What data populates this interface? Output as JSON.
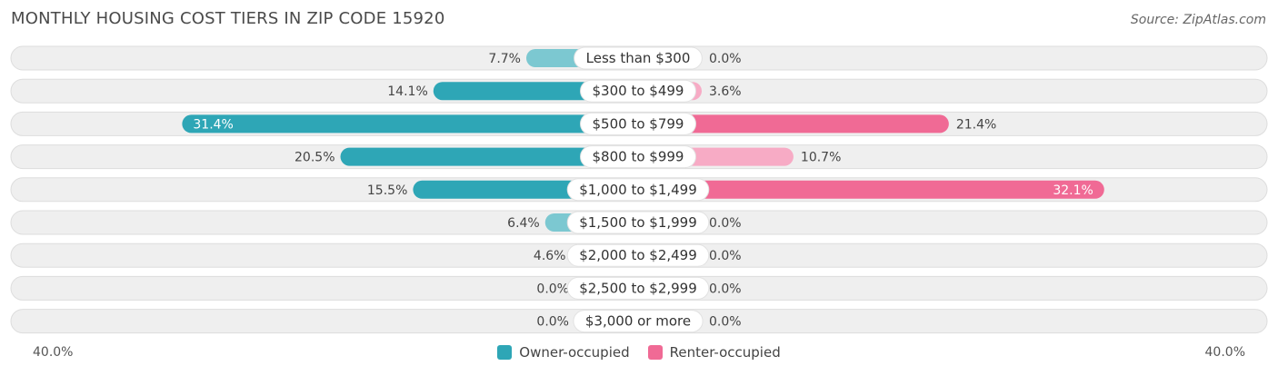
{
  "header": {
    "title": "MONTHLY HOUSING COST TIERS IN ZIP CODE 15920",
    "source": "Source: ZipAtlas.com"
  },
  "axis": {
    "left_label": "40.0%",
    "right_label": "40.0%"
  },
  "legend": {
    "owner_label": "Owner-occupied",
    "renter_label": "Renter-occupied"
  },
  "colors": {
    "owner": "#5bbdc8",
    "owner_strong": "#2ea6b6",
    "renter": "#f7a3c0",
    "renter_strong": "#f06a95",
    "row_bg": "#efefef",
    "pill": "#ffffff"
  },
  "chart_data": {
    "type": "bar",
    "orientation": "horizontal-diverging",
    "axis_max": 40.0,
    "categories": [
      "Less than $300",
      "$300 to $499",
      "$500 to $799",
      "$800 to $999",
      "$1,000 to $1,499",
      "$1,500 to $1,999",
      "$2,000 to $2,499",
      "$2,500 to $2,999",
      "$3,000 or more"
    ],
    "series": [
      {
        "name": "Owner-occupied",
        "values": [
          7.7,
          14.1,
          31.4,
          20.5,
          15.5,
          6.4,
          4.6,
          0.0,
          0.0
        ],
        "labels": [
          "7.7%",
          "14.1%",
          "31.4%",
          "20.5%",
          "15.5%",
          "6.4%",
          "4.6%",
          "0.0%",
          "0.0%"
        ]
      },
      {
        "name": "Renter-occupied",
        "values": [
          0.0,
          3.6,
          21.4,
          10.7,
          32.1,
          0.0,
          0.0,
          0.0,
          0.0
        ],
        "labels": [
          "0.0%",
          "3.6%",
          "21.4%",
          "10.7%",
          "32.1%",
          "0.0%",
          "0.0%",
          "0.0%",
          "0.0%"
        ]
      }
    ]
  }
}
